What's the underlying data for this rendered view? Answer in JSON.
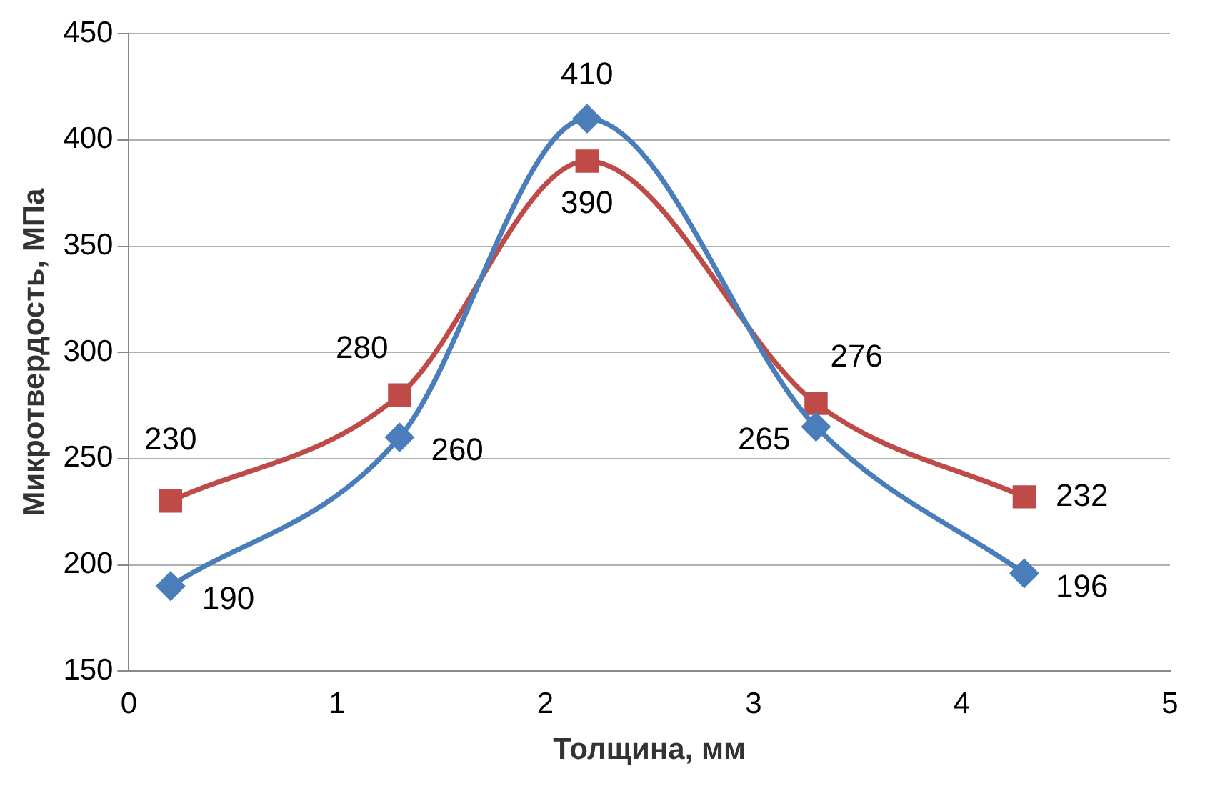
{
  "chart_data": {
    "type": "line",
    "xlabel": "Толщина, мм",
    "ylabel": "Микротвердость, МПа",
    "x": [
      0.2,
      1.3,
      2.2,
      3.3,
      4.3
    ],
    "series": [
      {
        "color": "#4a7ebb",
        "marker": "diamond",
        "values": [
          190,
          260,
          410,
          265,
          196
        ]
      },
      {
        "color": "#be4b48",
        "marker": "square",
        "values": [
          230,
          280,
          390,
          276,
          232
        ]
      }
    ],
    "xlim": [
      0,
      5
    ],
    "xticks": [
      0,
      1,
      2,
      3,
      4,
      5
    ],
    "ylim": [
      150,
      450
    ],
    "yticks": [
      150,
      200,
      250,
      300,
      350,
      400,
      450
    ],
    "grid": "y",
    "legend": false,
    "data_labels": true
  }
}
